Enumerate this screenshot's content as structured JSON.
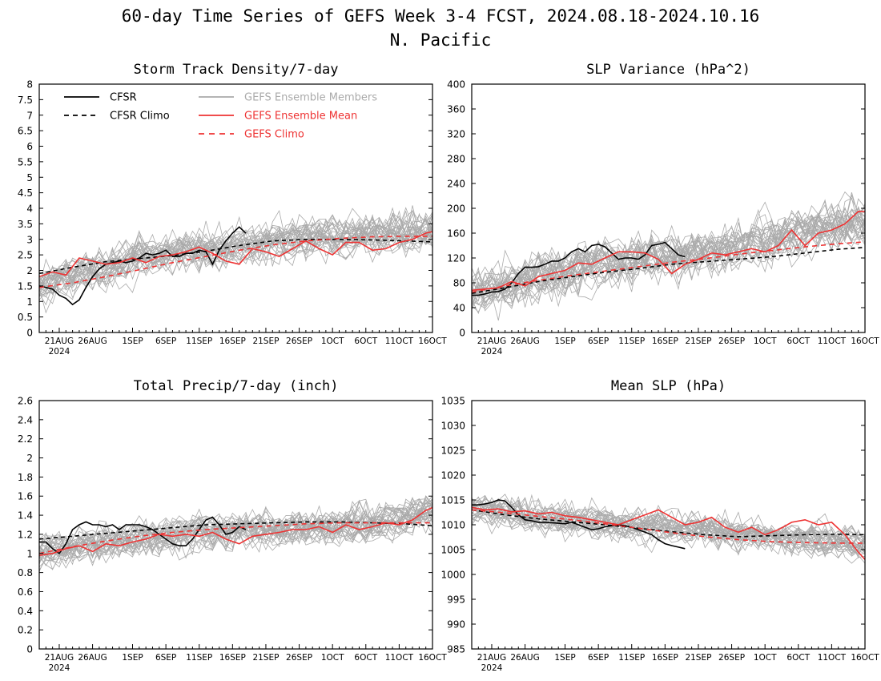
{
  "page": {
    "title_line1": "60-day Time Series of GEFS Week 3-4 FCST, 2024.08.18-2024.10.16",
    "title_line2": "N. Pacific"
  },
  "colors": {
    "cfsr": "#000000",
    "ensemble_members": "#aaaaaa",
    "ensemble_mean": "#ee3333",
    "gefs_climo": "#ee3333"
  },
  "legend": {
    "cfsr": "CFSR",
    "cfsr_climo": "CFSR Climo",
    "members": "GEFS Ensemble Members",
    "ens_mean": "GEFS Ensemble Mean",
    "gefs_climo": "GEFS Climo"
  },
  "x_axis": {
    "tick_labels": [
      "21AUG",
      "26AUG",
      "1SEP",
      "6SEP",
      "11SEP",
      "16SEP",
      "21SEP",
      "26SEP",
      "1OCT",
      "6OCT",
      "11OCT",
      "16OCT"
    ],
    "tick_days": [
      3,
      8,
      14,
      19,
      24,
      29,
      34,
      39,
      44,
      49,
      54,
      59
    ],
    "year_label": "2024",
    "xlim": [
      0,
      59
    ]
  },
  "chart_data": [
    {
      "type": "line",
      "title": "Storm Track Density/7-day",
      "ylim": [
        0,
        8
      ],
      "yticks": [
        "0",
        "0.5",
        "1",
        "1.5",
        "2",
        "2.5",
        "3",
        "3.5",
        "4",
        "4.5",
        "5",
        "5.5",
        "6",
        "6.5",
        "7",
        "7.5",
        "8"
      ],
      "ytick_values": [
        0,
        0.5,
        1,
        1.5,
        2,
        2.5,
        3,
        3.5,
        4,
        4.5,
        5,
        5.5,
        6,
        6.5,
        7,
        7.5,
        8
      ],
      "series": [
        {
          "name": "CFSR",
          "x": [
            0,
            1,
            2,
            3,
            4,
            5,
            6,
            7,
            8,
            9,
            10,
            11,
            12,
            13,
            14,
            15,
            16,
            17,
            18,
            19,
            20,
            21,
            22,
            23,
            24,
            25,
            26,
            27,
            28,
            29,
            30,
            31
          ],
          "values": [
            1.5,
            1.45,
            1.4,
            1.2,
            1.1,
            0.9,
            1.05,
            1.45,
            1.8,
            2.05,
            2.2,
            2.25,
            2.3,
            2.25,
            2.3,
            2.4,
            2.55,
            2.5,
            2.55,
            2.65,
            2.45,
            2.45,
            2.55,
            2.55,
            2.65,
            2.6,
            2.2,
            2.65,
            2.95,
            3.2,
            3.4,
            3.2
          ]
        },
        {
          "name": "CFSR Climo",
          "x": [
            0,
            5,
            10,
            15,
            20,
            25,
            30,
            35,
            40,
            45,
            50,
            55,
            59
          ],
          "values": [
            1.9,
            2.1,
            2.28,
            2.38,
            2.48,
            2.62,
            2.8,
            2.95,
            3.0,
            3.0,
            2.98,
            2.95,
            2.92
          ]
        },
        {
          "name": "GEFS Ensemble Mean",
          "x": [
            0,
            2,
            4,
            6,
            8,
            10,
            12,
            14,
            16,
            18,
            20,
            22,
            24,
            26,
            28,
            30,
            32,
            34,
            36,
            38,
            40,
            42,
            44,
            46,
            48,
            50,
            52,
            54,
            56,
            58,
            59
          ],
          "values": [
            1.8,
            1.95,
            1.85,
            2.4,
            2.3,
            2.2,
            2.25,
            2.4,
            2.25,
            2.45,
            2.5,
            2.6,
            2.75,
            2.55,
            2.3,
            2.2,
            2.7,
            2.6,
            2.45,
            2.7,
            2.95,
            2.7,
            2.5,
            2.9,
            2.9,
            2.65,
            2.7,
            2.9,
            3.0,
            3.2,
            3.25
          ]
        },
        {
          "name": "GEFS Climo",
          "x": [
            0,
            5,
            10,
            15,
            20,
            25,
            30,
            35,
            40,
            45,
            50,
            55,
            59
          ],
          "values": [
            1.45,
            1.6,
            1.8,
            2.02,
            2.25,
            2.45,
            2.65,
            2.82,
            2.95,
            3.03,
            3.08,
            3.1,
            3.1
          ]
        }
      ],
      "member_spread": {
        "center": [
          1.5,
          1.8,
          2.1,
          2.4,
          2.6,
          2.7,
          2.8,
          2.9,
          3.0,
          3.1,
          3.15,
          3.2,
          3.3
        ],
        "spread": 1.0
      }
    },
    {
      "type": "line",
      "title": "SLP Variance (hPa^2)",
      "ylim": [
        0,
        400
      ],
      "yticks": [
        "0",
        "40",
        "80",
        "120",
        "160",
        "200",
        "240",
        "280",
        "320",
        "360",
        "400"
      ],
      "ytick_values": [
        0,
        40,
        80,
        120,
        160,
        200,
        240,
        280,
        320,
        360,
        400
      ],
      "series": [
        {
          "name": "CFSR",
          "x": [
            0,
            1,
            2,
            3,
            4,
            5,
            6,
            7,
            8,
            9,
            10,
            11,
            12,
            13,
            14,
            15,
            16,
            17,
            18,
            19,
            20,
            21,
            22,
            23,
            24,
            25,
            26,
            27,
            28,
            29,
            30,
            31,
            32
          ],
          "values": [
            60,
            60,
            62,
            65,
            66,
            70,
            80,
            95,
            105,
            105,
            106,
            110,
            115,
            115,
            120,
            130,
            135,
            130,
            140,
            142,
            138,
            128,
            118,
            120,
            120,
            118,
            125,
            140,
            142,
            145,
            135,
            125,
            122
          ]
        },
        {
          "name": "CFSR Climo",
          "x": [
            0,
            5,
            10,
            15,
            20,
            25,
            30,
            35,
            40,
            45,
            50,
            55,
            59
          ],
          "values": [
            63,
            72,
            82,
            90,
            97,
            103,
            110,
            114,
            118,
            122,
            128,
            134,
            137
          ]
        },
        {
          "name": "GEFS Ensemble Mean",
          "x": [
            0,
            2,
            4,
            6,
            8,
            10,
            12,
            14,
            16,
            18,
            20,
            22,
            24,
            26,
            28,
            30,
            32,
            34,
            36,
            38,
            40,
            42,
            44,
            46,
            48,
            50,
            52,
            54,
            56,
            58,
            59
          ],
          "values": [
            68,
            70,
            72,
            82,
            75,
            90,
            95,
            100,
            112,
            110,
            120,
            130,
            130,
            128,
            118,
            95,
            110,
            118,
            128,
            125,
            130,
            135,
            130,
            140,
            165,
            140,
            160,
            165,
            175,
            195,
            195
          ]
        },
        {
          "name": "GEFS Climo",
          "x": [
            0,
            5,
            10,
            15,
            20,
            25,
            30,
            35,
            40,
            45,
            50,
            55,
            59
          ],
          "values": [
            65,
            75,
            84,
            92,
            99,
            106,
            113,
            119,
            126,
            132,
            138,
            143,
            146
          ]
        }
      ],
      "member_spread": {
        "center": [
          65,
          75,
          90,
          100,
          110,
          118,
          125,
          132,
          140,
          150,
          160,
          170,
          180
        ],
        "spread": 60
      }
    },
    {
      "type": "line",
      "title": "Total Precip/7-day (inch)",
      "ylim": [
        0,
        2.6
      ],
      "yticks": [
        "0",
        "0.2",
        "0.4",
        "0.6",
        "0.8",
        "1",
        "1.2",
        "1.4",
        "1.6",
        "1.8",
        "2",
        "2.2",
        "2.4",
        "2.6"
      ],
      "ytick_values": [
        0,
        0.2,
        0.4,
        0.6,
        0.8,
        1.0,
        1.2,
        1.4,
        1.6,
        1.8,
        2.0,
        2.2,
        2.4,
        2.6
      ],
      "series": [
        {
          "name": "CFSR",
          "x": [
            0,
            1,
            2,
            3,
            4,
            5,
            6,
            7,
            8,
            9,
            10,
            11,
            12,
            13,
            14,
            15,
            16,
            17,
            18,
            19,
            20,
            21,
            22,
            23,
            24,
            25,
            26,
            27,
            28,
            29,
            30,
            31
          ],
          "values": [
            1.12,
            1.12,
            1.05,
            1.0,
            1.1,
            1.25,
            1.3,
            1.33,
            1.3,
            1.3,
            1.28,
            1.3,
            1.25,
            1.3,
            1.3,
            1.3,
            1.28,
            1.25,
            1.2,
            1.15,
            1.1,
            1.08,
            1.08,
            1.15,
            1.25,
            1.35,
            1.38,
            1.3,
            1.2,
            1.22,
            1.28,
            1.25
          ]
        },
        {
          "name": "CFSR Climo",
          "x": [
            0,
            5,
            10,
            15,
            20,
            25,
            30,
            35,
            40,
            45,
            50,
            55,
            59
          ],
          "values": [
            1.15,
            1.18,
            1.21,
            1.24,
            1.27,
            1.3,
            1.31,
            1.32,
            1.33,
            1.33,
            1.32,
            1.31,
            1.29
          ]
        },
        {
          "name": "GEFS Ensemble Mean",
          "x": [
            0,
            2,
            4,
            6,
            8,
            10,
            12,
            14,
            16,
            18,
            20,
            22,
            24,
            26,
            28,
            30,
            32,
            34,
            36,
            38,
            40,
            42,
            44,
            46,
            48,
            50,
            52,
            54,
            56,
            58,
            59
          ],
          "values": [
            0.98,
            1.0,
            1.05,
            1.08,
            1.02,
            1.1,
            1.08,
            1.12,
            1.15,
            1.2,
            1.18,
            1.2,
            1.18,
            1.22,
            1.15,
            1.1,
            1.18,
            1.2,
            1.22,
            1.25,
            1.25,
            1.28,
            1.22,
            1.3,
            1.25,
            1.28,
            1.32,
            1.3,
            1.35,
            1.45,
            1.48
          ]
        },
        {
          "name": "GEFS Climo",
          "x": [
            0,
            5,
            10,
            15,
            20,
            25,
            30,
            35,
            40,
            45,
            50,
            55,
            59
          ],
          "values": [
            1.0,
            1.07,
            1.13,
            1.18,
            1.22,
            1.25,
            1.27,
            1.29,
            1.31,
            1.32,
            1.32,
            1.32,
            1.32
          ]
        }
      ],
      "member_spread": {
        "center": [
          1.0,
          1.08,
          1.12,
          1.16,
          1.2,
          1.22,
          1.24,
          1.26,
          1.28,
          1.3,
          1.32,
          1.36,
          1.45
        ],
        "spread": 0.3
      }
    },
    {
      "type": "line",
      "title": "Mean SLP (hPa)",
      "ylim": [
        985,
        1035
      ],
      "yticks": [
        "985",
        "990",
        "995",
        "1000",
        "1005",
        "1010",
        "1015",
        "1020",
        "1025",
        "1030",
        "1035"
      ],
      "ytick_values": [
        985,
        990,
        995,
        1000,
        1005,
        1010,
        1015,
        1020,
        1025,
        1030,
        1035
      ],
      "series": [
        {
          "name": "CFSR",
          "x": [
            0,
            1,
            2,
            3,
            4,
            5,
            6,
            7,
            8,
            9,
            10,
            11,
            12,
            13,
            14,
            15,
            16,
            17,
            18,
            19,
            20,
            21,
            22,
            23,
            24,
            25,
            26,
            27,
            28,
            29,
            30,
            31,
            32
          ],
          "values": [
            1014,
            1014,
            1014.2,
            1014.5,
            1015,
            1014.8,
            1013.5,
            1012,
            1011,
            1010.8,
            1010.5,
            1010.5,
            1010.4,
            1010.3,
            1010.2,
            1010.5,
            1010,
            1009.5,
            1009,
            1009.2,
            1009.6,
            1009.8,
            1010,
            1009.8,
            1009.5,
            1009,
            1008.5,
            1008,
            1007,
            1006.2,
            1005.8,
            1005.5,
            1005.2
          ]
        },
        {
          "name": "CFSR Climo",
          "x": [
            0,
            5,
            10,
            15,
            20,
            25,
            30,
            35,
            40,
            45,
            50,
            55,
            59
          ],
          "values": [
            1013,
            1012,
            1011.2,
            1010.6,
            1010,
            1009.3,
            1008.6,
            1008,
            1007.6,
            1007.8,
            1008,
            1008.1,
            1008
          ]
        },
        {
          "name": "GEFS Ensemble Mean",
          "x": [
            0,
            2,
            4,
            6,
            8,
            10,
            12,
            14,
            16,
            18,
            20,
            22,
            24,
            26,
            28,
            30,
            32,
            34,
            36,
            38,
            40,
            42,
            44,
            46,
            48,
            50,
            52,
            54,
            56,
            58,
            59
          ],
          "values": [
            1013.5,
            1013,
            1013.2,
            1012.6,
            1012.8,
            1012.2,
            1012.5,
            1011.8,
            1011.5,
            1011,
            1010.5,
            1010,
            1011,
            1012,
            1013,
            1011.5,
            1010,
            1010.5,
            1011.5,
            1009.5,
            1008.5,
            1009.5,
            1008,
            1009,
            1010.5,
            1011,
            1010,
            1010.5,
            1008,
            1004.5,
            1003
          ]
        },
        {
          "name": "GEFS Climo",
          "x": [
            0,
            5,
            10,
            15,
            20,
            25,
            30,
            35,
            40,
            45,
            50,
            55,
            59
          ],
          "values": [
            1013,
            1012.4,
            1011.7,
            1011,
            1010.2,
            1009.3,
            1008.4,
            1007.6,
            1007,
            1006.6,
            1006.4,
            1006.3,
            1006.3
          ]
        }
      ],
      "member_spread": {
        "center": [
          1013,
          1012.5,
          1011.5,
          1011,
          1010.5,
          1010,
          1009.5,
          1009,
          1008.5,
          1008,
          1007.5,
          1007,
          1006
        ],
        "spread": 5
      }
    }
  ]
}
